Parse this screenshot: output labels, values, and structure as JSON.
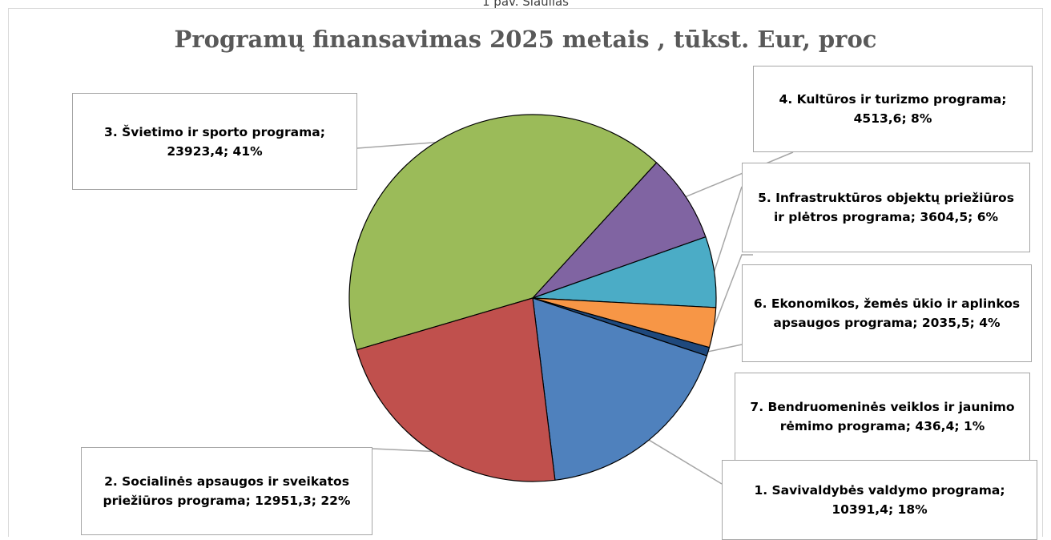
{
  "caption": "1 pav. Šiaulias",
  "chart_data": {
    "type": "pie",
    "title": "Programų finansavimas 2025 metais , tūkst. Eur, proc",
    "start_category": "3. Švietimo ir sporto programa",
    "slices": [
      {
        "name": "1. Savivaldybės valdymo programa",
        "value": 10391.4,
        "percent": "18%",
        "label": "1. Savivaldybės valdymo programa; 10391,4; 18%",
        "color": "#4f81bd"
      },
      {
        "name": "2. Socialinės apsaugos ir sveikatos priežiūros programa",
        "value": 12951.3,
        "percent": "22%",
        "label": "2. Socialinės apsaugos ir sveikatos priežiūros programa; 12951,3; 22%",
        "color": "#c0504d"
      },
      {
        "name": "3. Švietimo ir sporto programa",
        "value": 23923.4,
        "percent": "41%",
        "label": "3. Švietimo ir sporto programa; 23923,4; 41%",
        "color": "#9bbb59"
      },
      {
        "name": "4. Kultūros ir turizmo programa",
        "value": 4513.6,
        "percent": "8%",
        "label": "4. Kultūros ir turizmo programa; 4513,6; 8%",
        "color": "#8064a2"
      },
      {
        "name": "5. Infrastruktūros objektų priežiūros ir plėtros programa",
        "value": 3604.5,
        "percent": "6%",
        "label": "5. Infrastruktūros objektų priežiūros ir plėtros programa; 3604,5; 6%",
        "color": "#4bacc6"
      },
      {
        "name": "6. Ekonomikos, žemės ūkio ir aplinkos apsaugos programa",
        "value": 2035.5,
        "percent": "4%",
        "label": "6. Ekonomikos, žemės ūkio ir aplinkos apsaugos programa; 2035,5; 4%",
        "color": "#f79646"
      },
      {
        "name": "7. Bendruomeninės veiklos ir jaunimo rėmimo programa",
        "value": 436.4,
        "percent": "1%",
        "label": "7. Bendruomeninės veiklos ir jaunimo rėmimo programa; 436,4; 1%",
        "color": "#1f497d"
      }
    ]
  }
}
